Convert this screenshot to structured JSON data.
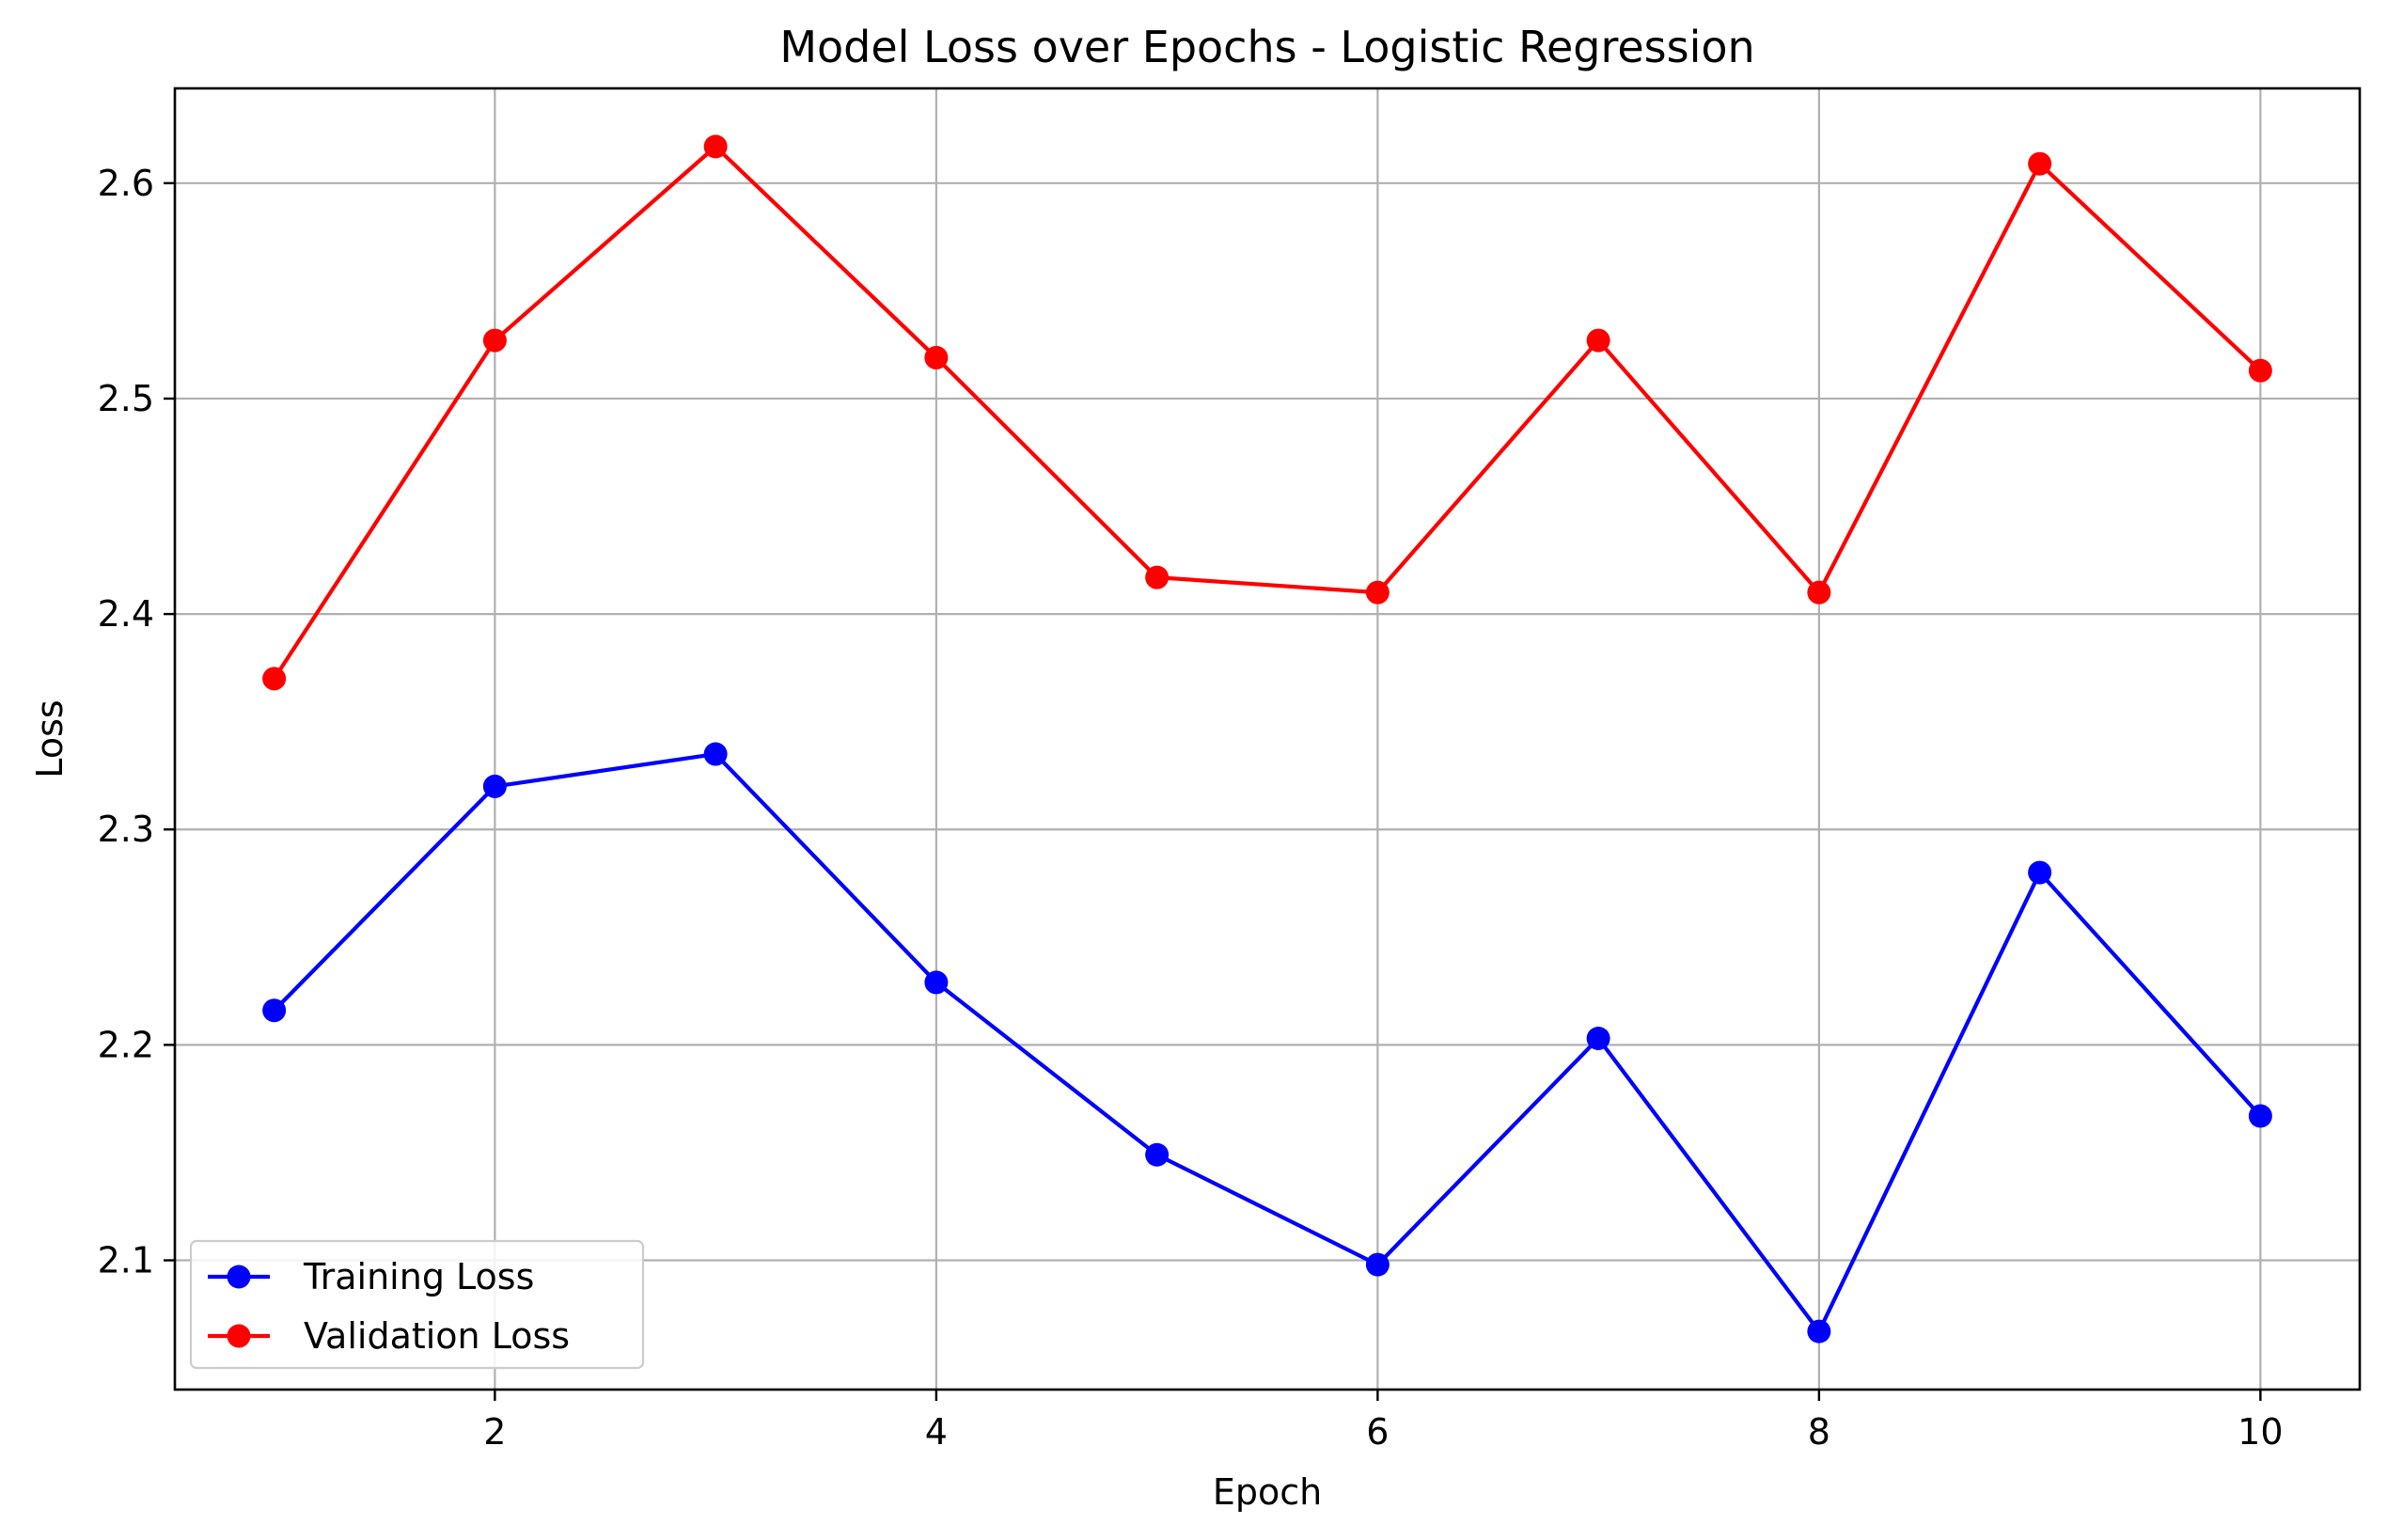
{
  "chart_data": {
    "type": "line",
    "title": "Model Loss over Epochs - Logistic Regression",
    "xlabel": "Epoch",
    "ylabel": "Loss",
    "x": [
      1,
      2,
      3,
      4,
      5,
      6,
      7,
      8,
      9,
      10
    ],
    "xlim": [
      0.55,
      10.45
    ],
    "ylim": [
      2.04,
      2.644
    ],
    "xticks": [
      2,
      4,
      6,
      8,
      10
    ],
    "xtick_labels": [
      "2",
      "4",
      "6",
      "8",
      "10"
    ],
    "yticks": [
      2.1,
      2.2,
      2.3,
      2.4,
      2.5,
      2.6
    ],
    "ytick_labels": [
      "2.1",
      "2.2",
      "2.3",
      "2.4",
      "2.5",
      "2.6"
    ],
    "grid": true,
    "legend_position": "lower-left",
    "series": [
      {
        "name": "Training Loss",
        "color": "#0000ff",
        "marker": "circle",
        "values": [
          2.216,
          2.32,
          2.335,
          2.229,
          2.149,
          2.098,
          2.203,
          2.067,
          2.28,
          2.167
        ]
      },
      {
        "name": "Validation Loss",
        "color": "#ff0000",
        "marker": "circle",
        "values": [
          2.37,
          2.527,
          2.617,
          2.519,
          2.417,
          2.41,
          2.527,
          2.41,
          2.609,
          2.513
        ]
      }
    ]
  }
}
